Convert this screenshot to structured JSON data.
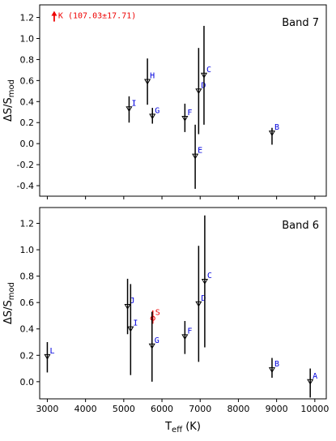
{
  "chart_data": [
    {
      "type": "scatter",
      "title": "Band 7",
      "xlabel": "",
      "ylabel": "ΔS/S_mod",
      "xlim": [
        2800,
        10300
      ],
      "ylim": [
        -0.5,
        1.32
      ],
      "yticks": [
        -0.4,
        -0.2,
        0.0,
        0.2,
        0.4,
        0.6,
        0.8,
        1.0,
        1.2
      ],
      "points": [
        {
          "label": "I",
          "x": 5140,
          "y": 0.33,
          "err_lo": 0.13,
          "err_hi": 0.12,
          "color": "#0000dd"
        },
        {
          "label": "H",
          "x": 5620,
          "y": 0.59,
          "err_lo": 0.22,
          "err_hi": 0.22,
          "color": "#0000dd"
        },
        {
          "label": "G",
          "x": 5750,
          "y": 0.26,
          "err_lo": 0.07,
          "err_hi": 0.08,
          "color": "#0000dd"
        },
        {
          "label": "F",
          "x": 6600,
          "y": 0.24,
          "err_lo": 0.13,
          "err_hi": 0.14,
          "color": "#0000dd"
        },
        {
          "label": "E",
          "x": 6870,
          "y": -0.12,
          "err_lo": 0.31,
          "err_hi": 0.3,
          "color": "#0000dd"
        },
        {
          "label": "D",
          "x": 6960,
          "y": 0.5,
          "err_lo": 0.41,
          "err_hi": 0.41,
          "color": "#0000dd"
        },
        {
          "label": "C",
          "x": 7100,
          "y": 0.65,
          "err_lo": 0.47,
          "err_hi": 0.47,
          "color": "#0000dd"
        },
        {
          "label": "B",
          "x": 8880,
          "y": 0.1,
          "err_lo": 0.11,
          "err_hi": 0.05,
          "color": "#0000dd"
        }
      ],
      "lower_limit": {
        "label": "K (107.03±17.71)",
        "x": 3180,
        "y": 1.2,
        "color": "#ee0000"
      }
    },
    {
      "type": "scatter",
      "title": "Band 6",
      "xlabel": "T_eff (K)",
      "ylabel": "ΔS/S_mod",
      "xlim": [
        2800,
        10300
      ],
      "ylim": [
        -0.13,
        1.32
      ],
      "yticks": [
        0.0,
        0.2,
        0.4,
        0.6,
        0.8,
        1.0,
        1.2
      ],
      "xticks": [
        3000,
        4000,
        5000,
        6000,
        7000,
        8000,
        9000,
        10000
      ],
      "points": [
        {
          "label": "L",
          "x": 3000,
          "y": 0.19,
          "err_lo": 0.12,
          "err_hi": 0.11,
          "color": "#0000dd"
        },
        {
          "label": "J",
          "x": 5100,
          "y": 0.57,
          "err_lo": 0.21,
          "err_hi": 0.21,
          "color": "#0000dd"
        },
        {
          "label": "I",
          "x": 5180,
          "y": 0.4,
          "err_lo": 0.35,
          "err_hi": 0.34,
          "color": "#0000dd"
        },
        {
          "label": "S",
          "x": 5760,
          "y": 0.48,
          "err_lo": 0.04,
          "err_hi": 0.06,
          "color": "#ee0000",
          "marker": "circle"
        },
        {
          "label": "G",
          "x": 5740,
          "y": 0.27,
          "err_lo": 0.27,
          "err_hi": 0.26,
          "color": "#0000dd"
        },
        {
          "label": "F",
          "x": 6600,
          "y": 0.34,
          "err_lo": 0.13,
          "err_hi": 0.12,
          "color": "#0000dd"
        },
        {
          "label": "D",
          "x": 6960,
          "y": 0.59,
          "err_lo": 0.44,
          "err_hi": 0.44,
          "color": "#0000dd"
        },
        {
          "label": "C",
          "x": 7120,
          "y": 0.76,
          "err_lo": 0.5,
          "err_hi": 0.5,
          "color": "#0000dd"
        },
        {
          "label": "B",
          "x": 8880,
          "y": 0.09,
          "err_lo": 0.06,
          "err_hi": 0.09,
          "color": "#0000dd"
        },
        {
          "label": "A",
          "x": 9880,
          "y": 0.0,
          "err_lo": 0.12,
          "err_hi": 0.1,
          "color": "#0000dd"
        }
      ]
    }
  ]
}
